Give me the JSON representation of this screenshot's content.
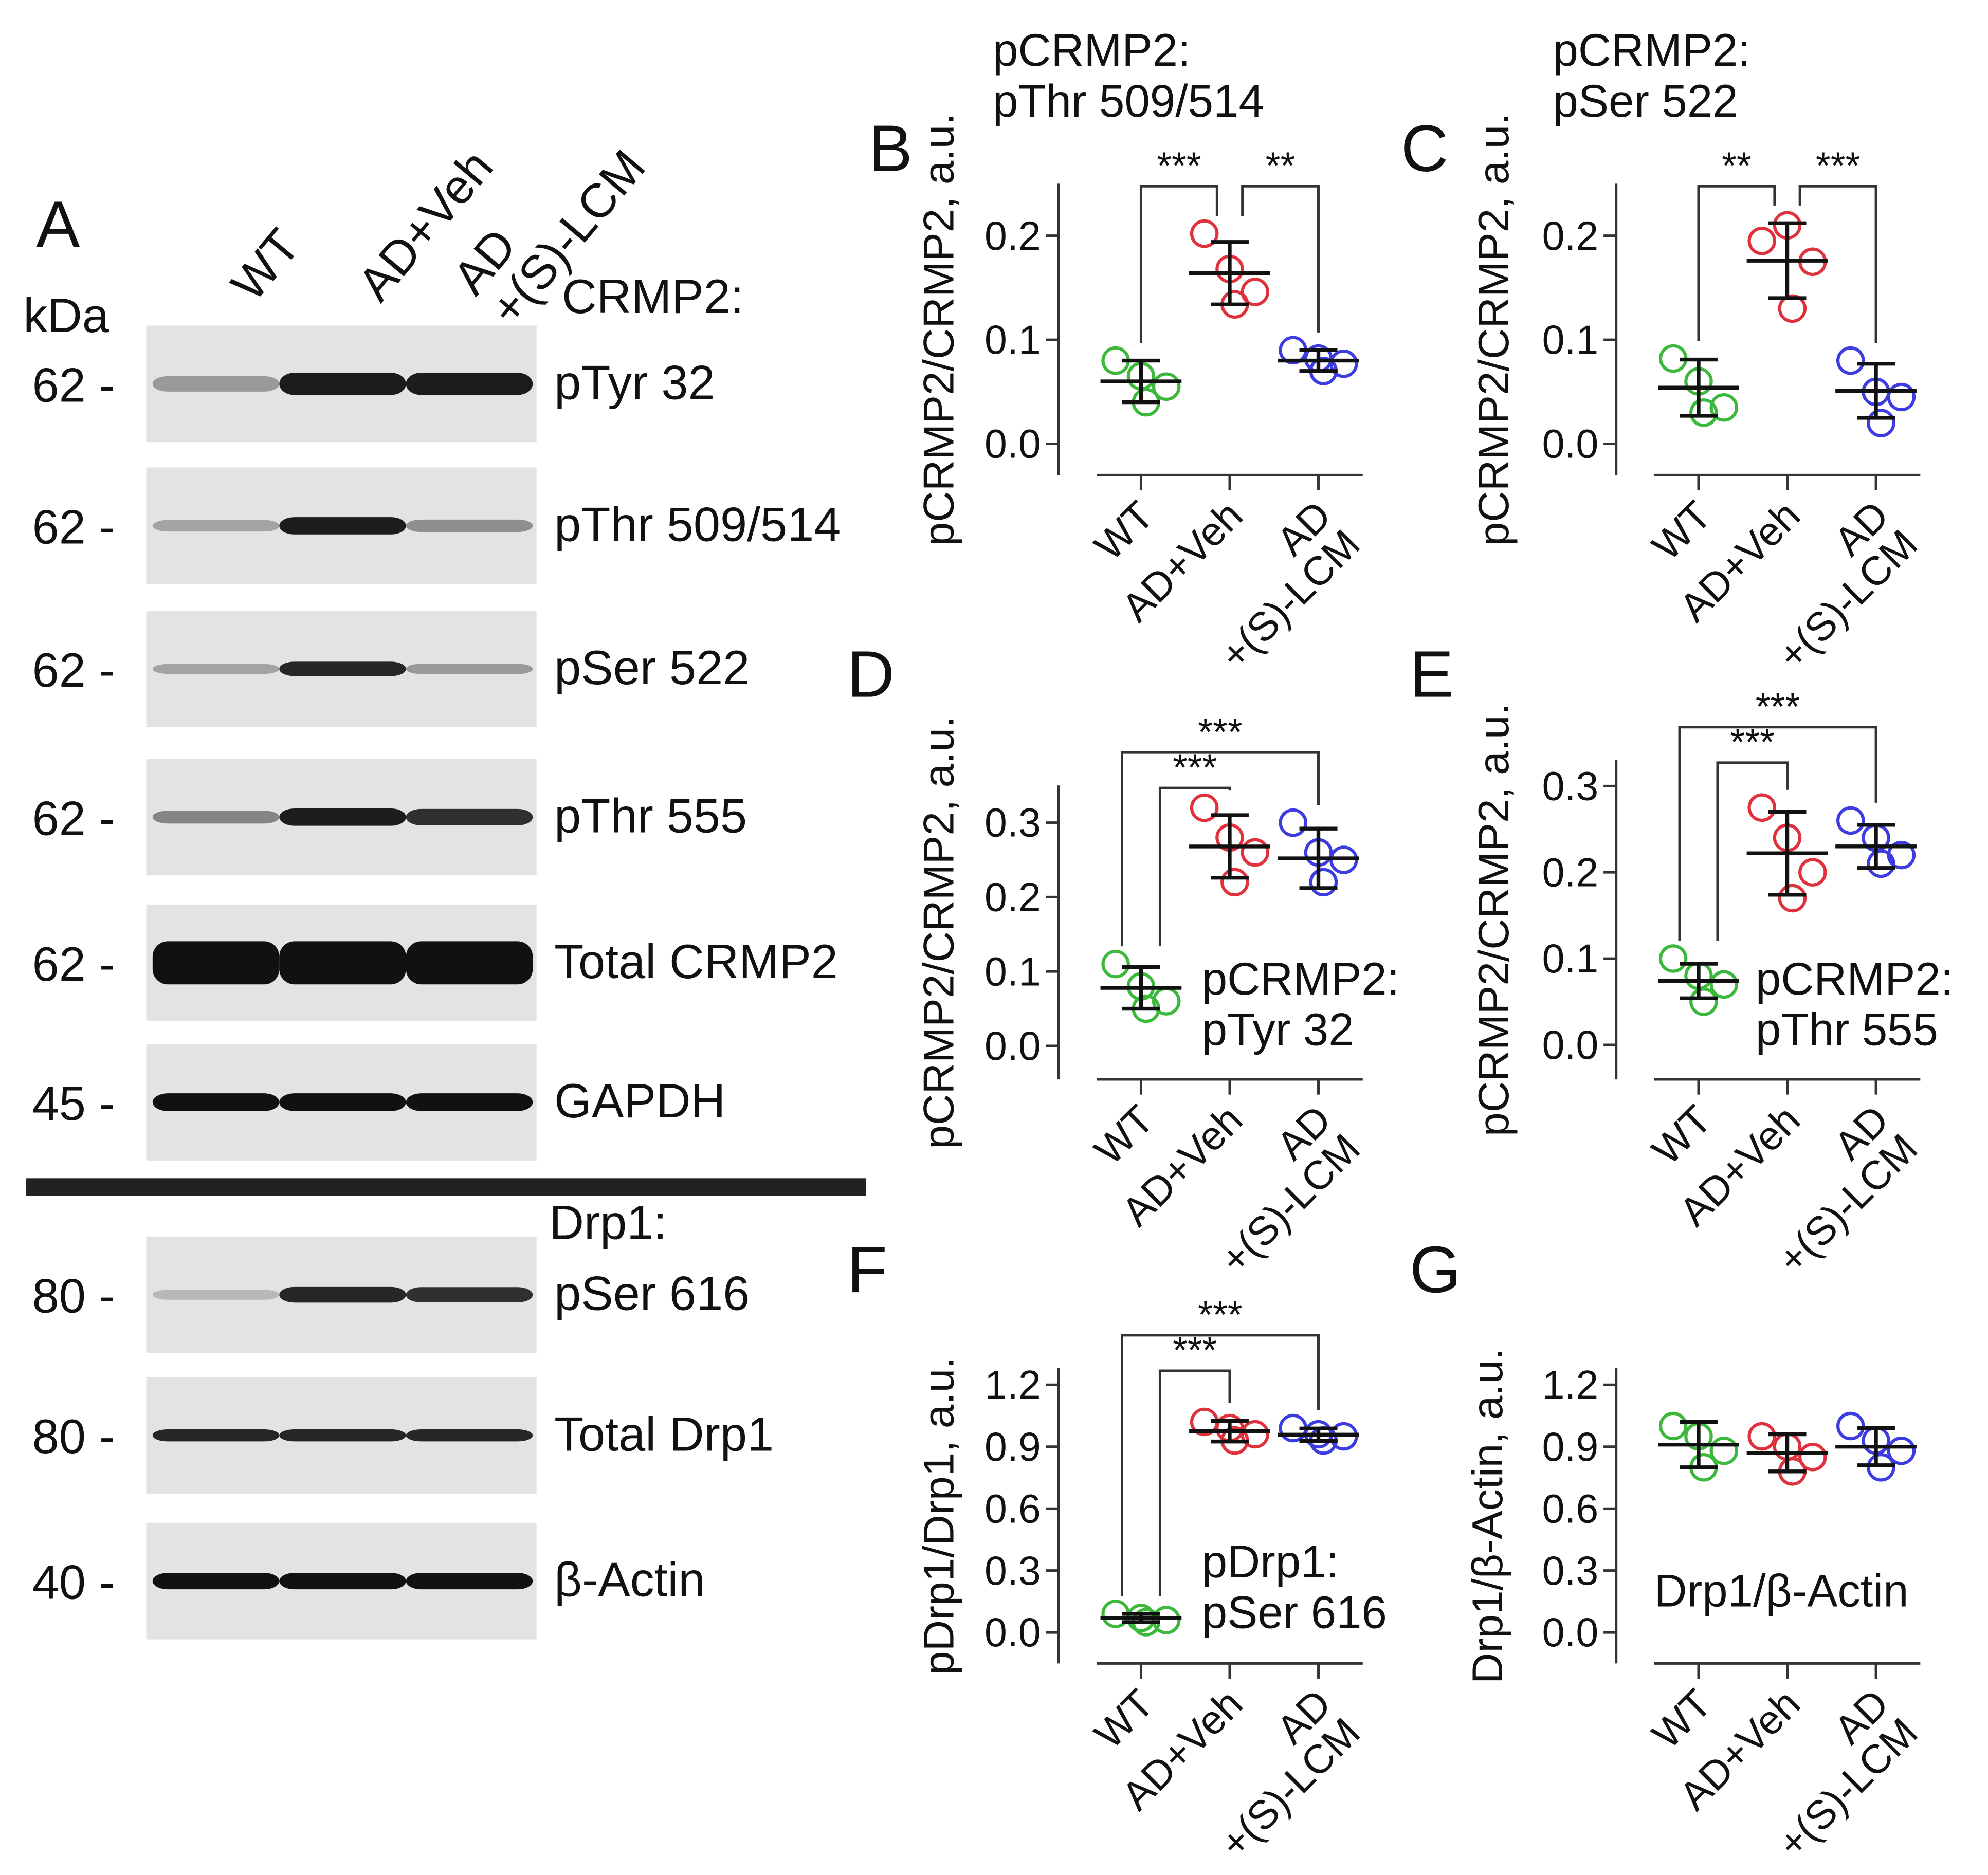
{
  "blot": {
    "panel_label": "A",
    "unit_label": "kDa",
    "lanes": [
      "WT",
      "AD+Veh",
      "AD\n+(S)-LCM"
    ],
    "sections": [
      {
        "label": "CRMP2:",
        "rows": [
          {
            "marker": "62 -",
            "label": "pTyr 32"
          },
          {
            "marker": "62 -",
            "label": "pThr 509/514"
          },
          {
            "marker": "62 -",
            "label": "pSer 522"
          },
          {
            "marker": "62 -",
            "label": "pThr 555"
          },
          {
            "marker": "62 -",
            "label": "Total CRMP2"
          },
          {
            "marker": "45 -",
            "label": "GAPDH"
          }
        ]
      },
      {
        "label": "Drp1:",
        "rows": [
          {
            "marker": "80 -",
            "label": "pSer 616"
          },
          {
            "marker": "80 -",
            "label": "Total Drp1"
          },
          {
            "marker": "40 -",
            "label": "β-Actin"
          }
        ]
      }
    ]
  },
  "chart_data": [
    {
      "type": "dot",
      "panel_label": "B",
      "title": [
        "pCRMP2:",
        "pThr 509/514"
      ],
      "title_position": "top",
      "ylabel": "pCRMP2/CRMP2, a.u.",
      "categories": [
        "WT",
        "AD+Veh",
        "AD\n+(S)-LCM"
      ],
      "colors": [
        "#3cb93c",
        "#e0323c",
        "#3c3ce0"
      ],
      "groups": [
        {
          "points": [
            0.08,
            0.065,
            0.055,
            0.04
          ],
          "mean": 0.06,
          "sd": 0.02
        },
        {
          "points": [
            0.202,
            0.168,
            0.146,
            0.134
          ],
          "mean": 0.164,
          "sd": 0.03
        },
        {
          "points": [
            0.09,
            0.082,
            0.077,
            0.07
          ],
          "mean": 0.08,
          "sd": 0.01
        }
      ],
      "ylim": [
        -0.03,
        0.25
      ],
      "yticks": [
        {
          "value": 0,
          "label": "0.0"
        },
        0.1,
        0.2
      ],
      "annotations": [
        {
          "from": 0,
          "to": 1,
          "label": "***"
        },
        {
          "from": 1,
          "to": 2,
          "label": "**"
        }
      ]
    },
    {
      "type": "dot",
      "panel_label": "C",
      "title": [
        "pCRMP2:",
        "pSer 522"
      ],
      "title_position": "top",
      "ylabel": "pCRMP2/CRMP2, a.u.",
      "categories": [
        "WT",
        "AD+Veh",
        "AD\n+(S)-LCM"
      ],
      "colors": [
        "#3cb93c",
        "#e0323c",
        "#3c3ce0"
      ],
      "groups": [
        {
          "points": [
            0.082,
            0.06,
            0.035,
            0.03
          ],
          "mean": 0.054,
          "sd": 0.027
        },
        {
          "points": [
            0.195,
            0.21,
            0.175,
            0.13
          ],
          "mean": 0.176,
          "sd": 0.036
        },
        {
          "points": [
            0.08,
            0.05,
            0.045,
            0.02
          ],
          "mean": 0.051,
          "sd": 0.026
        }
      ],
      "ylim": [
        -0.03,
        0.25
      ],
      "yticks": [
        {
          "value": 0,
          "label": "0.0"
        },
        0.1,
        0.2
      ],
      "annotations": [
        {
          "from": 0,
          "to": 1,
          "label": "**"
        },
        {
          "from": 1,
          "to": 2,
          "label": "***"
        }
      ]
    },
    {
      "type": "dot",
      "panel_label": "D",
      "title": [
        "pCRMP2:",
        "pTyr 32"
      ],
      "title_position": "inside",
      "ylabel": "pCRMP2/CRMP2, a.u.",
      "categories": [
        "WT",
        "AD+Veh",
        "AD\n+(S)-LCM"
      ],
      "colors": [
        "#3cb93c",
        "#e0323c",
        "#3c3ce0"
      ],
      "groups": [
        {
          "points": [
            0.11,
            0.08,
            0.06,
            0.05
          ],
          "mean": 0.078,
          "sd": 0.028
        },
        {
          "points": [
            0.32,
            0.28,
            0.26,
            0.22
          ],
          "mean": 0.268,
          "sd": 0.042
        },
        {
          "points": [
            0.3,
            0.26,
            0.25,
            0.22
          ],
          "mean": 0.252,
          "sd": 0.04
        }
      ],
      "ylim": [
        -0.045,
        0.35
      ],
      "yticks": [
        {
          "value": 0,
          "label": "0.0"
        },
        0.1,
        0.2,
        0.3
      ],
      "annotations": [
        {
          "from": 0,
          "to": 1,
          "label": "***"
        },
        {
          "from": 0,
          "to": 2,
          "label": "***"
        }
      ]
    },
    {
      "type": "dot",
      "panel_label": "E",
      "title": [
        "pCRMP2:",
        "pThr 555"
      ],
      "title_position": "inside",
      "ylabel": "pCRMP2/CRMP2, a.u.",
      "categories": [
        "WT",
        "AD+Veh",
        "AD\n+(S)-LCM"
      ],
      "colors": [
        "#3cb93c",
        "#e0323c",
        "#3c3ce0"
      ],
      "groups": [
        {
          "points": [
            0.1,
            0.08,
            0.07,
            0.05
          ],
          "mean": 0.074,
          "sd": 0.02
        },
        {
          "points": [
            0.275,
            0.24,
            0.2,
            0.17
          ],
          "mean": 0.222,
          "sd": 0.048
        },
        {
          "points": [
            0.26,
            0.24,
            0.22,
            0.21
          ],
          "mean": 0.23,
          "sd": 0.025
        }
      ],
      "ylim": [
        -0.04,
        0.33
      ],
      "yticks": [
        {
          "value": 0,
          "label": "0.0"
        },
        0.1,
        0.2,
        0.3
      ],
      "annotations": [
        {
          "from": 0,
          "to": 1,
          "label": "***"
        },
        {
          "from": 0,
          "to": 2,
          "label": "***"
        }
      ]
    },
    {
      "type": "dot",
      "panel_label": "F",
      "title": [
        "pDrp1:",
        "pSer 616"
      ],
      "title_position": "inside",
      "ylabel": "pDrp1/Drp1, a.u.",
      "categories": [
        "WT",
        "AD+Veh",
        "AD\n+(S)-LCM"
      ],
      "colors": [
        "#3cb93c",
        "#e0323c",
        "#3c3ce0"
      ],
      "groups": [
        {
          "points": [
            0.09,
            0.07,
            0.06,
            0.05
          ],
          "mean": 0.07,
          "sd": 0.02
        },
        {
          "points": [
            1.02,
            0.99,
            0.96,
            0.93
          ],
          "mean": 0.975,
          "sd": 0.05
        },
        {
          "points": [
            0.99,
            0.96,
            0.95,
            0.93
          ],
          "mean": 0.958,
          "sd": 0.03
        }
      ],
      "ylim": [
        -0.15,
        1.28
      ],
      "yticks": [
        {
          "value": 0,
          "label": "0.0"
        },
        0.3,
        0.6,
        0.9,
        1.2
      ],
      "annotations": [
        {
          "from": 0,
          "to": 1,
          "label": "***"
        },
        {
          "from": 0,
          "to": 2,
          "label": "***"
        }
      ]
    },
    {
      "type": "dot",
      "panel_label": "G",
      "title": [
        "Drp1/β-Actin"
      ],
      "title_position": "inside",
      "ylabel": "Drp1/β-Actin, a.u.",
      "categories": [
        "WT",
        "AD+Veh",
        "AD\n+(S)-LCM"
      ],
      "colors": [
        "#3cb93c",
        "#e0323c",
        "#3c3ce0"
      ],
      "groups": [
        {
          "points": [
            1.0,
            0.95,
            0.88,
            0.8
          ],
          "mean": 0.91,
          "sd": 0.11
        },
        {
          "points": [
            0.95,
            0.9,
            0.85,
            0.78
          ],
          "mean": 0.87,
          "sd": 0.09
        },
        {
          "points": [
            1.0,
            0.93,
            0.88,
            0.8
          ],
          "mean": 0.9,
          "sd": 0.09
        }
      ],
      "ylim": [
        -0.15,
        1.28
      ],
      "yticks": [
        {
          "value": 0,
          "label": "0.0"
        },
        0.3,
        0.6,
        0.9,
        1.2
      ],
      "annotations": []
    }
  ]
}
